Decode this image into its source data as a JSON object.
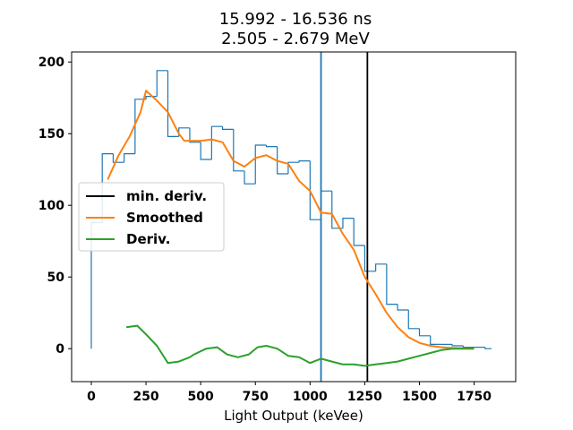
{
  "chart_data": {
    "type": "line",
    "title_line1": "15.992 - 16.536 ns",
    "title_line2": "2.505 - 2.679 MeV",
    "xlabel": "Light Output (keVee)",
    "ylabel": "",
    "xlim": [
      -90,
      1940
    ],
    "ylim": [
      -23,
      207
    ],
    "xticks": [
      0,
      250,
      500,
      750,
      1000,
      1250,
      1500,
      1750
    ],
    "yticks": [
      0,
      50,
      100,
      150,
      200
    ],
    "grid": false,
    "legend_position": "center-left",
    "histogram": {
      "color": "#1f77b4",
      "edges": [
        0,
        50,
        100,
        150,
        200,
        250,
        300,
        350,
        400,
        450,
        500,
        550,
        600,
        650,
        700,
        750,
        800,
        850,
        900,
        950,
        1000,
        1050,
        1100,
        1150,
        1200,
        1250,
        1300,
        1350,
        1400,
        1450,
        1500,
        1550,
        1600,
        1650,
        1700,
        1750,
        1800,
        1830
      ],
      "counts": [
        88,
        136,
        130,
        136,
        174,
        176,
        194,
        148,
        154,
        144,
        132,
        155,
        153,
        124,
        115,
        142,
        141,
        122,
        130,
        131,
        90,
        110,
        84,
        91,
        72,
        54,
        59,
        31,
        27,
        14,
        9,
        3,
        3,
        2,
        1,
        1,
        0
      ]
    },
    "series": [
      {
        "name": "Smoothed",
        "color": "#ff7f0e",
        "x": [
          75,
          125,
          175,
          225,
          250,
          300,
          350,
          400,
          425,
          450,
          500,
          550,
          600,
          650,
          700,
          750,
          800,
          850,
          900,
          950,
          1000,
          1050,
          1100,
          1150,
          1200,
          1250,
          1300,
          1350,
          1400,
          1450,
          1500,
          1550,
          1600,
          1650,
          1700,
          1750
        ],
        "y": [
          118,
          135,
          148,
          165,
          180,
          173,
          165,
          150,
          145,
          145,
          145,
          146,
          144,
          131,
          127,
          133,
          135,
          131,
          129,
          117,
          110,
          95,
          94,
          80,
          69,
          50,
          38,
          25,
          15,
          8,
          4,
          2,
          1,
          0.5,
          0.3,
          0.2
        ]
      },
      {
        "name": "Deriv.",
        "color": "#2ca02c",
        "x": [
          160,
          210,
          250,
          300,
          350,
          400,
          450,
          470,
          525,
          575,
          620,
          670,
          720,
          760,
          800,
          850,
          900,
          950,
          1000,
          1050,
          1100,
          1150,
          1200,
          1250,
          1300,
          1350,
          1400,
          1450,
          1500,
          1550,
          1600,
          1650,
          1700,
          1750
        ],
        "y": [
          15,
          16,
          10,
          2,
          -10,
          -9,
          -6,
          -4,
          0,
          1,
          -4,
          -6,
          -4,
          1,
          2,
          0,
          -5,
          -6,
          -10,
          -7,
          -9,
          -11,
          -11,
          -12,
          -11,
          -10,
          -9,
          -7,
          -5,
          -3,
          -1,
          0,
          0,
          0
        ]
      }
    ],
    "vlines": [
      {
        "name": "min. deriv.",
        "x": 1262,
        "color": "#000000"
      },
      {
        "name": "",
        "x": 1050,
        "color": "#1f77b4"
      }
    ],
    "legend": [
      {
        "label": "min. deriv.",
        "color": "#000000"
      },
      {
        "label": "Smoothed",
        "color": "#ff7f0e"
      },
      {
        "label": "Deriv.",
        "color": "#2ca02c"
      }
    ]
  }
}
